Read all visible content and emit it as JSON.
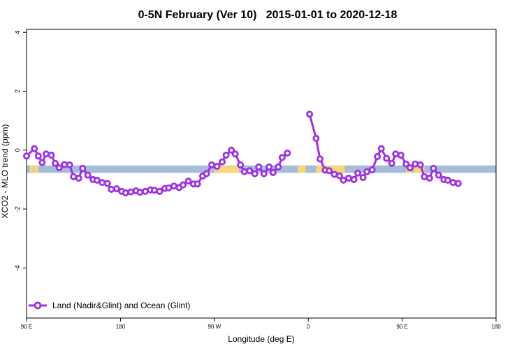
{
  "chart_data": {
    "type": "line",
    "title": "0-5N February (Ver 10)   2015-01-01 to 2020-12-18",
    "xlabel": "Longitude (deg E)",
    "ylabel": "XCO2 - MLO trend (ppm)",
    "xlim": [
      90,
      450
    ],
    "ylim": [
      -5.7,
      4.1
    ],
    "x_ticks": [
      {
        "value": 90,
        "label": "90 E"
      },
      {
        "value": 162,
        "label": "180"
      },
      {
        "value": 234,
        "label": "90 W"
      },
      {
        "value": 306,
        "label": "0"
      },
      {
        "value": 378,
        "label": "90 E"
      },
      {
        "value": 450,
        "label": "180"
      }
    ],
    "y_ticks": [
      {
        "value": 4,
        "label": "4"
      },
      {
        "value": 2,
        "label": "2"
      },
      {
        "value": 0,
        "label": "0"
      },
      {
        "value": -2,
        "label": "-2"
      },
      {
        "value": -4,
        "label": "-4"
      }
    ],
    "legend": {
      "position": "bottom-left",
      "label": "Land (Nadir&Glint) and Ocean (Glint)"
    },
    "colors": {
      "series": "#9b30e6",
      "ocean": "#a7bcd6",
      "land": "#f6d77a",
      "axis": "#000000"
    },
    "surface_band": {
      "y_range": [
        -0.77,
        -0.52
      ],
      "land_ranges": [
        [
          92.5,
          95.5
        ],
        [
          97.5,
          99
        ],
        [
          96,
          97.5
        ],
        [
          234,
          253
        ],
        [
          298,
          304
        ],
        [
          312,
          334
        ],
        [
          381,
          385
        ],
        [
          387,
          395
        ]
      ]
    },
    "series": [
      {
        "name": "Land (Nadir&Glint) and Ocean (Glint)",
        "segments": [
          [
            [
              90,
              -0.2
            ],
            [
              96,
              0.05
            ],
            [
              99,
              -0.2
            ],
            [
              102,
              -0.42
            ],
            [
              105,
              -0.13
            ],
            [
              109,
              -0.17
            ],
            [
              112,
              -0.45
            ],
            [
              115,
              -0.6
            ],
            [
              119,
              -0.49
            ],
            [
              123,
              -0.5
            ],
            [
              126,
              -0.9
            ],
            [
              130,
              -0.95
            ],
            [
              133,
              -0.62
            ],
            [
              137,
              -0.85
            ],
            [
              141,
              -1.0
            ],
            [
              144,
              -1.02
            ],
            [
              148,
              -1.1
            ],
            [
              152,
              -1.13
            ],
            [
              155,
              -1.33
            ],
            [
              159,
              -1.31
            ],
            [
              163,
              -1.4
            ],
            [
              166,
              -1.45
            ],
            [
              170,
              -1.42
            ],
            [
              174,
              -1.38
            ],
            [
              177,
              -1.43
            ],
            [
              181,
              -1.4
            ],
            [
              185,
              -1.35
            ],
            [
              188,
              -1.36
            ],
            [
              192,
              -1.4
            ],
            [
              196,
              -1.3
            ],
            [
              199,
              -1.28
            ],
            [
              203,
              -1.22
            ],
            [
              207,
              -1.27
            ],
            [
              210,
              -1.18
            ],
            [
              214,
              -1.05
            ],
            [
              218,
              -1.15
            ],
            [
              221,
              -1.15
            ],
            [
              225,
              -0.88
            ],
            [
              228,
              -0.8
            ],
            [
              232,
              -0.5
            ],
            [
              236,
              -0.55
            ],
            [
              240,
              -0.4
            ],
            [
              243,
              -0.17
            ],
            [
              247,
              0.0
            ],
            [
              250,
              -0.13
            ],
            [
              254,
              -0.5
            ],
            [
              257,
              -0.73
            ],
            [
              261,
              -0.7
            ],
            [
              265,
              -0.8
            ],
            [
              268,
              -0.57
            ],
            [
              272,
              -0.8
            ],
            [
              276,
              -0.57
            ],
            [
              279,
              -0.76
            ],
            [
              283,
              -0.57
            ],
            [
              286,
              -0.25
            ],
            [
              290,
              -0.1
            ]
          ],
          [
            [
              307,
              1.22
            ],
            [
              312,
              0.4
            ],
            [
              315,
              -0.3
            ],
            [
              319,
              -0.68
            ],
            [
              322,
              -0.7
            ],
            [
              326,
              -0.82
            ],
            [
              330,
              -0.87
            ],
            [
              333,
              -1.02
            ],
            [
              337,
              -0.95
            ],
            [
              341,
              -1.0
            ],
            [
              344,
              -0.78
            ],
            [
              348,
              -0.93
            ],
            [
              351,
              -0.73
            ],
            [
              355,
              -0.67
            ],
            [
              359,
              -0.22
            ],
            [
              362,
              0.05
            ],
            [
              366,
              -0.28
            ],
            [
              370,
              -0.45
            ],
            [
              373,
              -0.13
            ],
            [
              377,
              -0.17
            ],
            [
              381,
              -0.47
            ],
            [
              384,
              -0.6
            ],
            [
              388,
              -0.47
            ],
            [
              392,
              -0.5
            ],
            [
              395,
              -0.9
            ],
            [
              399,
              -0.95
            ],
            [
              402,
              -0.62
            ],
            [
              406,
              -0.85
            ],
            [
              410,
              -1.0
            ],
            [
              413,
              -1.02
            ],
            [
              417,
              -1.1
            ],
            [
              421,
              -1.13
            ]
          ]
        ]
      }
    ]
  }
}
